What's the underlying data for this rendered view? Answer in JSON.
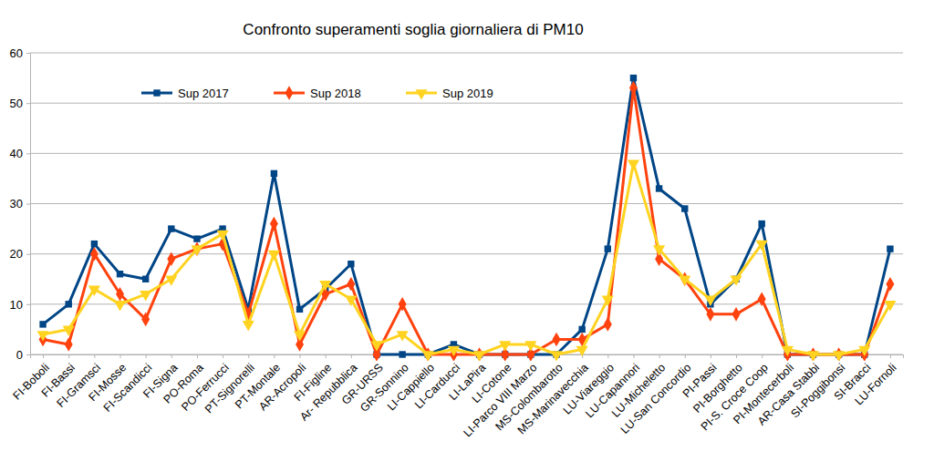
{
  "chart_data": {
    "type": "line",
    "title": "Confronto superamenti soglia giornaliera di PM10",
    "categories": [
      "FI-Boboli",
      "FI-Bassi",
      "FI-Gramsci",
      "FI-Mosse",
      "FI-Scandicci",
      "FI-Signa",
      "PO-Roma",
      "PO-Ferrucci",
      "PT-Signorelli",
      "PT-Montale",
      "AR-Acropoli",
      "FI-Figline",
      "Ar- Repubblica",
      "GR-URSS",
      "GR-Sonnino",
      "LI-Cappiello",
      "LI-Carducci",
      "LI-LaPira",
      "LI-Cotone",
      "LI-Parco VIII Marzo",
      "MS-Colombarotto",
      "MS-Marinavecchia",
      "LU-Viareggio",
      "LU-Capannori",
      "LU-Micheletto",
      "LU-San Concordio",
      "PI-Passi",
      "PI-Borghetto",
      "PI-S. Croce Coop",
      "PI-Montecerboli",
      "AR-Casa Stabbi",
      "SI-Poggibonsi",
      "SI-Bracci",
      "LU-Fornoli"
    ],
    "series": [
      {
        "name": "Sup 2017",
        "color": "#004586",
        "marker": "square",
        "values": [
          6,
          10,
          22,
          16,
          15,
          25,
          23,
          25,
          9,
          36,
          9,
          13,
          18,
          0,
          0,
          0,
          2,
          0,
          0,
          0,
          0,
          5,
          21,
          55,
          33,
          29,
          10,
          15,
          26,
          0,
          0,
          0,
          0,
          21
        ]
      },
      {
        "name": "Sup 2018",
        "color": "#ff420e",
        "marker": "diamond",
        "values": [
          3,
          2,
          20,
          12,
          7,
          19,
          21,
          22,
          8,
          26,
          2,
          12,
          14,
          0,
          10,
          0,
          0,
          0,
          0,
          0,
          3,
          3,
          6,
          53,
          19,
          15,
          8,
          8,
          11,
          0,
          0,
          0,
          0,
          14
        ]
      },
      {
        "name": "Sup 2019",
        "color": "#ffd320",
        "marker": "triangle-down",
        "values": [
          4,
          5,
          13,
          10,
          12,
          15,
          21,
          24,
          6,
          20,
          4,
          14,
          11,
          2,
          4,
          0,
          1,
          0,
          2,
          2,
          0,
          1,
          11,
          38,
          21,
          15,
          11,
          15,
          22,
          1,
          0,
          0,
          1,
          10
        ]
      }
    ],
    "ylim": [
      0,
      60
    ],
    "yticks": [
      0,
      10,
      20,
      30,
      40,
      50,
      60
    ],
    "grid": true,
    "legend": "top-left"
  }
}
